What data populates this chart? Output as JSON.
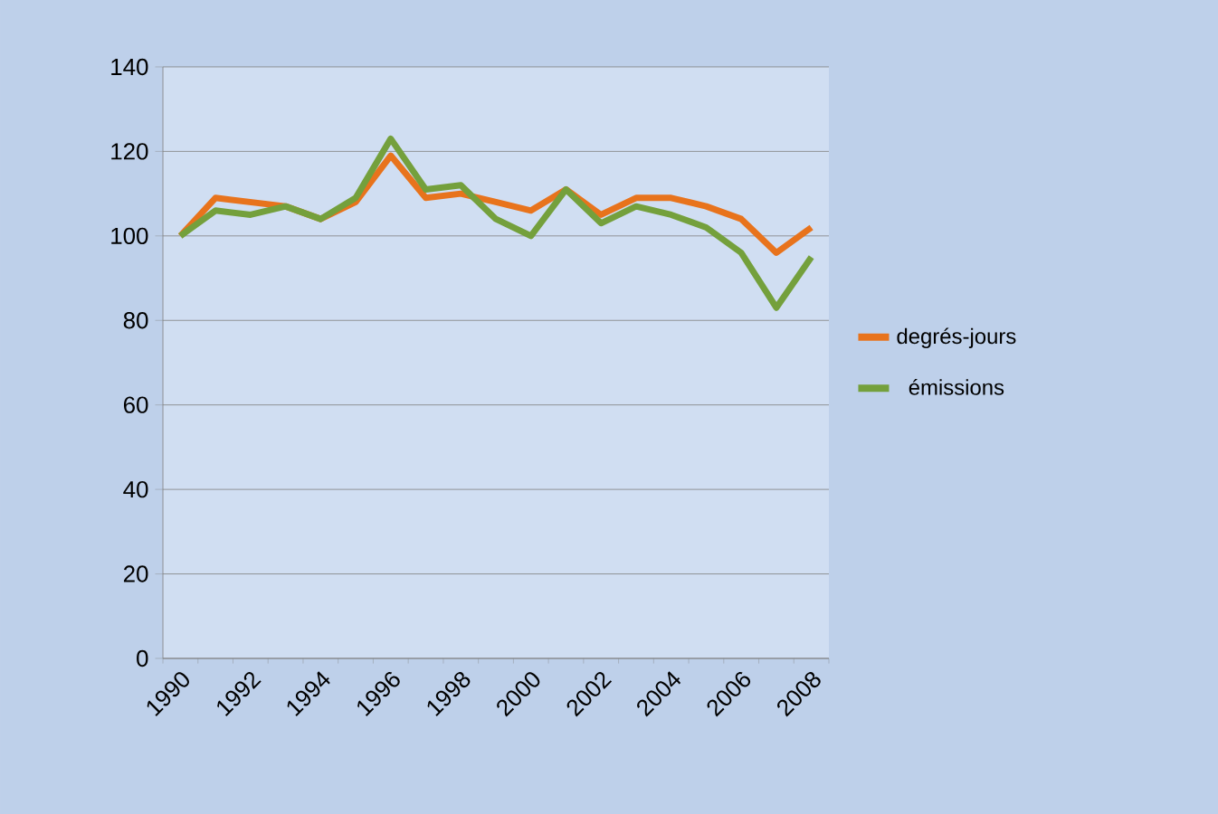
{
  "chart_data": {
    "type": "line",
    "categories": [
      "1990",
      null,
      "1992",
      null,
      "1994",
      null,
      "1996",
      null,
      "1998",
      null,
      "2000",
      null,
      "2002",
      null,
      "2004",
      null,
      "2006",
      null,
      "2008"
    ],
    "series": [
      {
        "name": "degrés-jours",
        "color": "#e8731c",
        "values": [
          100,
          109,
          108,
          107,
          104,
          108,
          119,
          109,
          110,
          108,
          106,
          111,
          105,
          109,
          109,
          107,
          104,
          96,
          102
        ]
      },
      {
        "name": "émissions",
        "color": "#74a03c",
        "values": [
          100,
          106,
          105,
          107,
          104,
          109,
          123,
          111,
          112,
          104,
          100,
          111,
          103,
          107,
          105,
          102,
          96,
          83,
          95
        ]
      }
    ],
    "ylim": [
      0,
      140
    ],
    "yticks": [
      0,
      20,
      40,
      60,
      80,
      100,
      120,
      140
    ],
    "grid": "y",
    "legend": "right",
    "marker": "none",
    "line_style": "solid"
  }
}
